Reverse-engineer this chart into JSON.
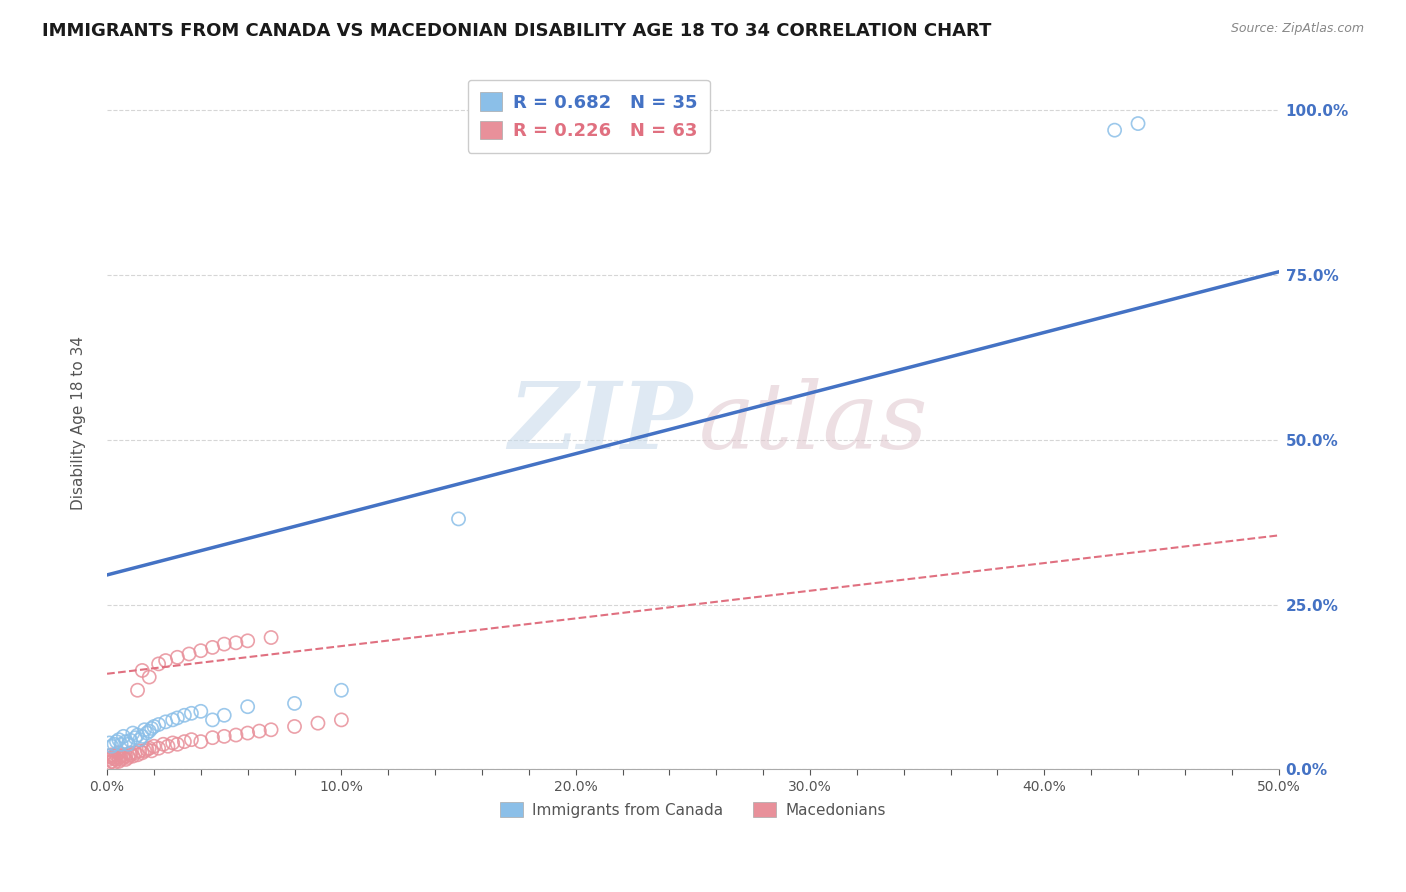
{
  "title": "IMMIGRANTS FROM CANADA VS MACEDONIAN DISABILITY AGE 18 TO 34 CORRELATION CHART",
  "source": "Source: ZipAtlas.com",
  "ylabel": "Disability Age 18 to 34",
  "xlim": [
    0.0,
    0.5
  ],
  "ylim": [
    0.0,
    1.05
  ],
  "xtick_labels": [
    "0.0%",
    "",
    "",
    "",
    "",
    "10.0%",
    "",
    "",
    "",
    "",
    "20.0%",
    "",
    "",
    "",
    "",
    "30.0%",
    "",
    "",
    "",
    "",
    "40.0%",
    "",
    "",
    "",
    "",
    "50.0%"
  ],
  "xtick_vals": [
    0.0,
    0.02,
    0.04,
    0.06,
    0.08,
    0.1,
    0.12,
    0.14,
    0.16,
    0.18,
    0.2,
    0.22,
    0.24,
    0.26,
    0.28,
    0.3,
    0.32,
    0.34,
    0.36,
    0.38,
    0.4,
    0.42,
    0.44,
    0.46,
    0.48,
    0.5
  ],
  "ytick_labels": [
    "100.0%",
    "75.0%",
    "50.0%",
    "25.0%",
    "0.0%"
  ],
  "ytick_vals": [
    1.0,
    0.75,
    0.5,
    0.25,
    0.0
  ],
  "legend_items": [
    {
      "label": "R = 0.682   N = 35",
      "color": "#a8c8f0",
      "series": "blue"
    },
    {
      "label": "R = 0.226   N = 63",
      "color": "#f4a8b8",
      "series": "pink"
    }
  ],
  "legend_labels_bottom": [
    "Immigrants from Canada",
    "Macedonians"
  ],
  "blue_scatter_x": [
    0.001,
    0.002,
    0.003,
    0.004,
    0.005,
    0.006,
    0.007,
    0.008,
    0.009,
    0.01,
    0.011,
    0.012,
    0.013,
    0.014,
    0.015,
    0.016,
    0.017,
    0.018,
    0.019,
    0.02,
    0.022,
    0.025,
    0.028,
    0.03,
    0.033,
    0.036,
    0.04,
    0.045,
    0.05,
    0.06,
    0.08,
    0.1,
    0.15,
    0.43,
    0.44
  ],
  "blue_scatter_y": [
    0.04,
    0.035,
    0.038,
    0.042,
    0.045,
    0.038,
    0.05,
    0.042,
    0.038,
    0.044,
    0.055,
    0.048,
    0.052,
    0.045,
    0.05,
    0.06,
    0.055,
    0.058,
    0.062,
    0.065,
    0.068,
    0.072,
    0.075,
    0.078,
    0.082,
    0.085,
    0.088,
    0.075,
    0.082,
    0.095,
    0.1,
    0.12,
    0.38,
    0.97,
    0.98
  ],
  "pink_scatter_x": [
    0.001,
    0.001,
    0.001,
    0.002,
    0.002,
    0.002,
    0.003,
    0.003,
    0.003,
    0.004,
    0.004,
    0.005,
    0.005,
    0.005,
    0.006,
    0.006,
    0.007,
    0.007,
    0.008,
    0.008,
    0.009,
    0.01,
    0.01,
    0.011,
    0.012,
    0.013,
    0.014,
    0.015,
    0.016,
    0.017,
    0.018,
    0.019,
    0.02,
    0.022,
    0.024,
    0.026,
    0.028,
    0.03,
    0.033,
    0.036,
    0.04,
    0.045,
    0.05,
    0.055,
    0.06,
    0.065,
    0.07,
    0.08,
    0.09,
    0.1,
    0.015,
    0.013,
    0.018,
    0.022,
    0.025,
    0.03,
    0.035,
    0.04,
    0.045,
    0.05,
    0.055,
    0.06,
    0.07
  ],
  "pink_scatter_y": [
    0.01,
    0.015,
    0.02,
    0.012,
    0.018,
    0.022,
    0.01,
    0.016,
    0.02,
    0.015,
    0.022,
    0.012,
    0.018,
    0.025,
    0.015,
    0.02,
    0.018,
    0.022,
    0.015,
    0.02,
    0.018,
    0.022,
    0.025,
    0.02,
    0.025,
    0.022,
    0.028,
    0.025,
    0.028,
    0.03,
    0.032,
    0.028,
    0.035,
    0.032,
    0.038,
    0.035,
    0.04,
    0.038,
    0.042,
    0.045,
    0.042,
    0.048,
    0.05,
    0.052,
    0.055,
    0.058,
    0.06,
    0.065,
    0.07,
    0.075,
    0.15,
    0.12,
    0.14,
    0.16,
    0.165,
    0.17,
    0.175,
    0.18,
    0.185,
    0.19,
    0.192,
    0.195,
    0.2
  ],
  "blue_line_x": [
    0.0,
    0.5
  ],
  "blue_line_y": [
    0.295,
    0.755
  ],
  "pink_line_x": [
    0.0,
    0.5
  ],
  "pink_line_y": [
    0.145,
    0.355
  ],
  "scatter_blue_color": "#8bbfe8",
  "scatter_pink_color": "#e8909a",
  "line_blue_color": "#4472c4",
  "line_pink_color": "#e07080",
  "background_color": "#ffffff",
  "grid_color": "#cccccc",
  "title_color": "#1a1a1a",
  "watermark_zip_color": "#c5d8ea",
  "watermark_atlas_color": "#dfc5cc",
  "axis_label_color": "#555555",
  "right_tick_color": "#4472c4"
}
